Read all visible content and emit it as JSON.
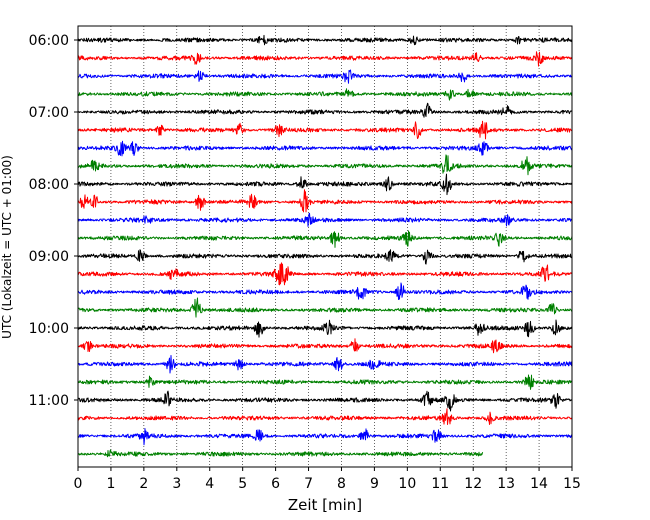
{
  "chart_data": {
    "type": "line",
    "title": "",
    "xlabel": "Zeit  [min]",
    "ylabel": "UTC (Lokalzeit = UTC + 01:00)",
    "xlim": [
      0,
      15
    ],
    "x_ticks": [
      0,
      1,
      2,
      3,
      4,
      5,
      6,
      7,
      8,
      9,
      10,
      11,
      12,
      13,
      14,
      15
    ],
    "x_tick_labels": [
      "0",
      "1",
      "2",
      "3",
      "4",
      "5",
      "6",
      "7",
      "8",
      "9",
      "10",
      "11",
      "12",
      "13",
      "14",
      "15"
    ],
    "y_tick_labels": [
      "06:00",
      "07:00",
      "08:00",
      "09:00",
      "10:00",
      "11:00"
    ],
    "grid": "vertical dotted lines at each minute",
    "trace_interval_minutes": 15,
    "trace_colors": [
      "#000000",
      "#ff0000",
      "#0000ff",
      "#008000"
    ],
    "series": [
      {
        "start": "06:00",
        "color": "#000000",
        "end_minute": 15,
        "events": [
          [
            5.6,
            0.5
          ],
          [
            10.2,
            0.45
          ],
          [
            13.4,
            0.4
          ]
        ]
      },
      {
        "start": "06:15",
        "color": "#ff0000",
        "end_minute": 15,
        "events": [
          [
            3.6,
            0.6
          ],
          [
            12.1,
            0.7
          ],
          [
            14.0,
            0.8
          ]
        ]
      },
      {
        "start": "06:30",
        "color": "#0000ff",
        "end_minute": 15,
        "events": [
          [
            3.7,
            0.6
          ],
          [
            8.2,
            0.9
          ],
          [
            11.7,
            0.6
          ]
        ]
      },
      {
        "start": "06:45",
        "color": "#008000",
        "end_minute": 15,
        "events": [
          [
            8.2,
            0.6
          ],
          [
            11.3,
            0.7
          ],
          [
            11.9,
            0.5
          ]
        ]
      },
      {
        "start": "07:00",
        "color": "#000000",
        "end_minute": 15,
        "events": [
          [
            10.6,
            1.0
          ],
          [
            13.0,
            0.6
          ]
        ]
      },
      {
        "start": "07:15",
        "color": "#ff0000",
        "end_minute": 15,
        "events": [
          [
            2.5,
            0.6
          ],
          [
            4.9,
            0.7
          ],
          [
            6.1,
            0.6
          ],
          [
            10.3,
            0.9
          ],
          [
            12.3,
            1.2
          ]
        ]
      },
      {
        "start": "07:30",
        "color": "#0000ff",
        "end_minute": 15,
        "events": [
          [
            1.3,
            0.9
          ],
          [
            1.7,
            0.7
          ],
          [
            12.3,
            0.8
          ]
        ]
      },
      {
        "start": "07:45",
        "color": "#008000",
        "end_minute": 15,
        "events": [
          [
            0.5,
            0.6
          ],
          [
            11.2,
            1.5
          ],
          [
            13.6,
            1.0
          ]
        ]
      },
      {
        "start": "08:00",
        "color": "#000000",
        "end_minute": 15,
        "events": [
          [
            6.8,
            0.8
          ],
          [
            9.4,
            0.9
          ],
          [
            11.2,
            1.2
          ]
        ]
      },
      {
        "start": "08:15",
        "color": "#ff0000",
        "end_minute": 15,
        "events": [
          [
            0.2,
            0.8
          ],
          [
            0.5,
            0.7
          ],
          [
            3.7,
            0.9
          ],
          [
            5.3,
            0.7
          ],
          [
            6.9,
            1.3
          ]
        ]
      },
      {
        "start": "08:30",
        "color": "#0000ff",
        "end_minute": 15,
        "events": [
          [
            2.1,
            0.5
          ],
          [
            7.0,
            0.6
          ],
          [
            13.0,
            0.6
          ]
        ]
      },
      {
        "start": "08:45",
        "color": "#008000",
        "end_minute": 15,
        "events": [
          [
            7.8,
            1.0
          ],
          [
            10.0,
            0.7
          ],
          [
            12.8,
            0.9
          ]
        ]
      },
      {
        "start": "09:00",
        "color": "#000000",
        "end_minute": 15,
        "events": [
          [
            1.9,
            0.6
          ],
          [
            9.5,
            0.7
          ],
          [
            10.6,
            1.0
          ],
          [
            13.5,
            0.8
          ]
        ]
      },
      {
        "start": "09:15",
        "color": "#ff0000",
        "end_minute": 15,
        "events": [
          [
            2.9,
            0.7
          ],
          [
            6.1,
            1.1
          ],
          [
            6.3,
            0.9
          ],
          [
            14.2,
            1.0
          ]
        ]
      },
      {
        "start": "09:30",
        "color": "#0000ff",
        "end_minute": 15,
        "events": [
          [
            8.6,
            0.9
          ],
          [
            9.8,
            1.0
          ],
          [
            13.6,
            0.9
          ]
        ]
      },
      {
        "start": "09:45",
        "color": "#008000",
        "end_minute": 15,
        "events": [
          [
            3.6,
            1.4
          ],
          [
            14.4,
            0.8
          ]
        ]
      },
      {
        "start": "10:00",
        "color": "#000000",
        "end_minute": 15,
        "events": [
          [
            5.5,
            0.9
          ],
          [
            7.6,
            0.7
          ],
          [
            12.2,
            0.8
          ],
          [
            13.7,
            1.0
          ],
          [
            14.5,
            0.8
          ]
        ]
      },
      {
        "start": "10:15",
        "color": "#ff0000",
        "end_minute": 15,
        "events": [
          [
            0.3,
            0.6
          ],
          [
            8.4,
            0.7
          ],
          [
            12.7,
            1.1
          ]
        ]
      },
      {
        "start": "10:30",
        "color": "#0000ff",
        "end_minute": 15,
        "events": [
          [
            2.8,
            0.9
          ],
          [
            4.9,
            0.6
          ],
          [
            7.9,
            1.0
          ],
          [
            9.0,
            0.9
          ]
        ]
      },
      {
        "start": "10:45",
        "color": "#008000",
        "end_minute": 15,
        "events": [
          [
            2.2,
            0.6
          ],
          [
            13.7,
            0.9
          ]
        ]
      },
      {
        "start": "11:00",
        "color": "#000000",
        "end_minute": 15,
        "events": [
          [
            2.7,
            0.9
          ],
          [
            10.6,
            0.8
          ],
          [
            11.3,
            1.0
          ],
          [
            14.5,
            0.8
          ]
        ]
      },
      {
        "start": "11:15",
        "color": "#ff0000",
        "end_minute": 15,
        "events": [
          [
            11.2,
            0.9
          ],
          [
            12.5,
            0.6
          ]
        ]
      },
      {
        "start": "11:30",
        "color": "#0000ff",
        "end_minute": 15,
        "events": [
          [
            2.0,
            0.8
          ],
          [
            5.5,
            0.7
          ],
          [
            8.7,
            0.8
          ],
          [
            10.9,
            0.9
          ]
        ]
      },
      {
        "start": "11:45",
        "color": "#008000",
        "end_minute": 12.3,
        "events": [
          [
            1.0,
            0.4
          ]
        ]
      }
    ]
  }
}
